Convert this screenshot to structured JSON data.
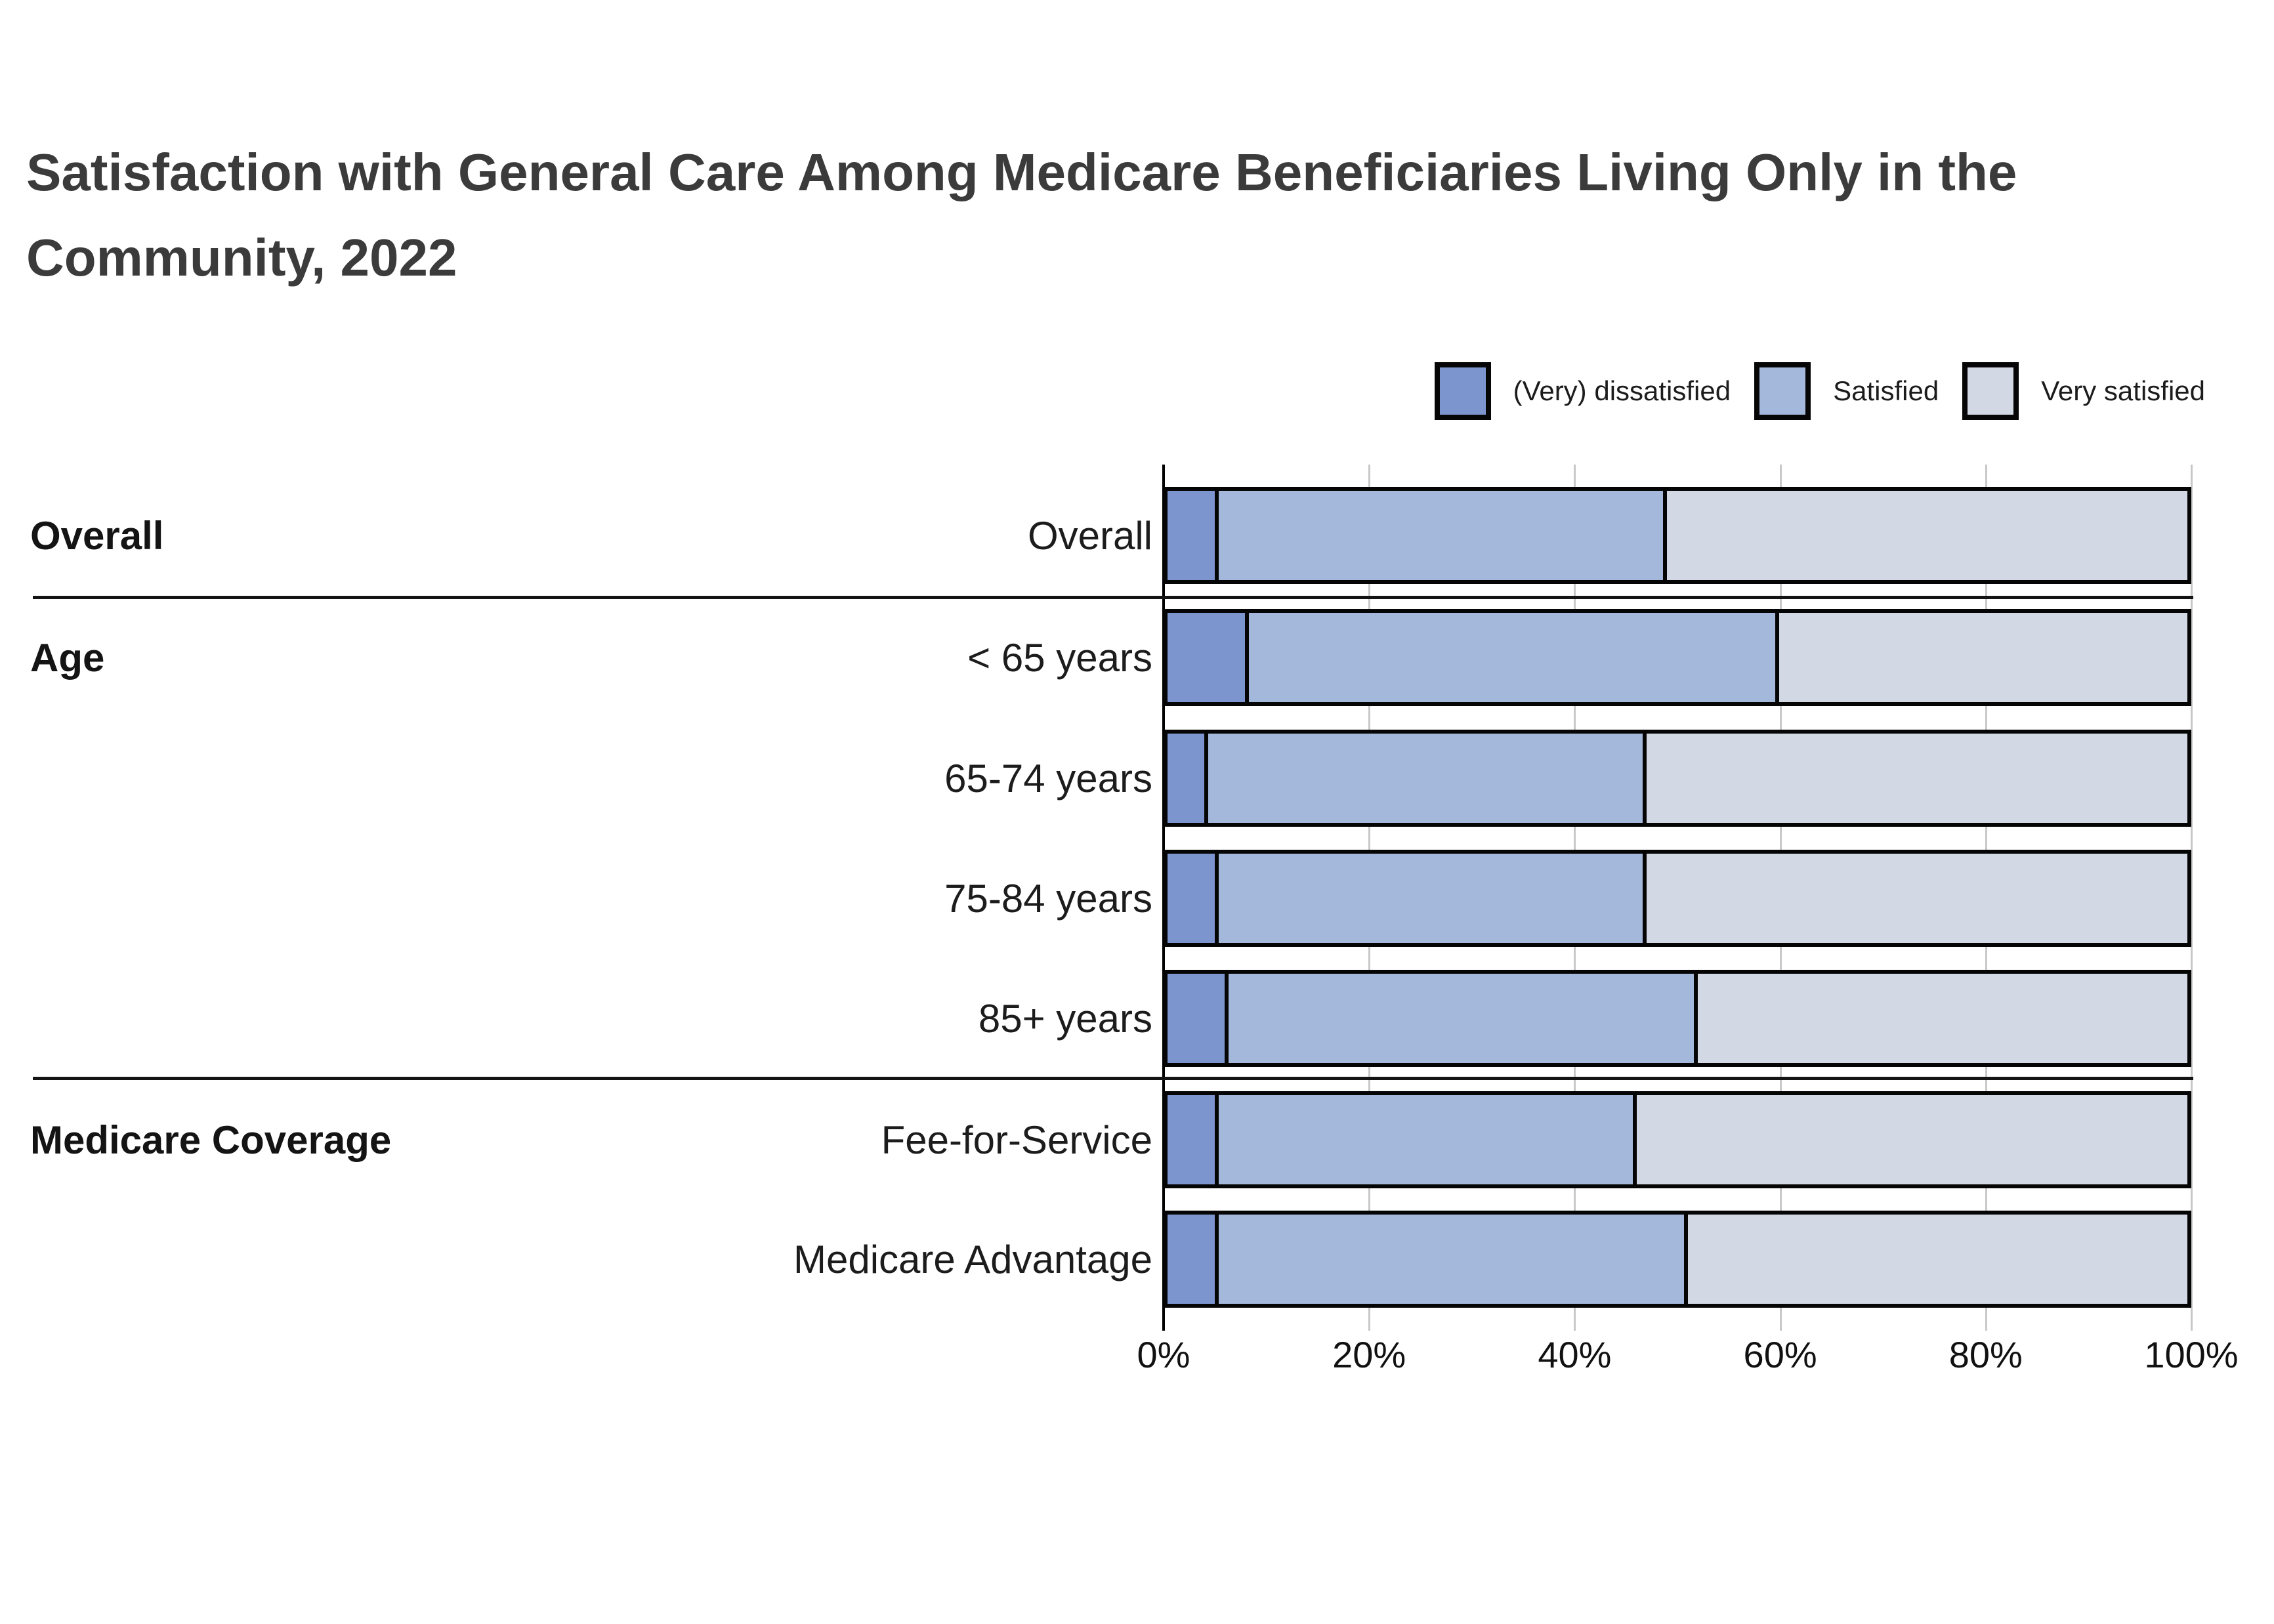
{
  "title": {
    "line1": "Satisfaction with General Care Among Medicare Beneficiaries Living Only in the",
    "line2": "Community, 2022"
  },
  "legend": [
    {
      "label": "(Very) dissatisfied",
      "color": "#7d95cf"
    },
    {
      "label": "Satisfied",
      "color": "#a4b8dc"
    },
    {
      "label": "Very satisfied",
      "color": "#d3d9e4"
    }
  ],
  "chart_data": {
    "type": "bar",
    "orientation": "horizontal-stacked",
    "unit": "percent",
    "series_names": [
      "(Very) dissatisfied",
      "Satisfied",
      "Very satisfied"
    ],
    "series_colors": [
      "#7d95cf",
      "#a4b8dc",
      "#d3d9e4"
    ],
    "x_axis": {
      "min": 0,
      "max": 100,
      "ticks": [
        "0%",
        "20%",
        "40%",
        "60%",
        "80%",
        "100%"
      ],
      "grid": true
    },
    "groups": [
      {
        "label": "Overall",
        "rows": [
          {
            "label": "Overall",
            "values": [
              5,
              44,
              51
            ]
          }
        ]
      },
      {
        "label": "Age",
        "rows": [
          {
            "label": "< 65 years",
            "values": [
              8,
              52,
              40
            ]
          },
          {
            "label": "65-74 years",
            "values": [
              4,
              43,
              53
            ]
          },
          {
            "label": "75-84 years",
            "values": [
              5,
              42,
              53
            ]
          },
          {
            "label": "85+ years",
            "values": [
              6,
              46,
              48
            ]
          }
        ]
      },
      {
        "label": "Medicare Coverage",
        "rows": [
          {
            "label": "Fee-for-Service",
            "values": [
              5,
              41,
              54
            ]
          },
          {
            "label": "Medicare Advantage",
            "values": [
              5,
              46,
              49
            ]
          }
        ]
      }
    ]
  },
  "colors": {
    "title": "#3b3b3b",
    "bar_border": "#050505",
    "gridline": "#c8c8c8",
    "axis": "#000000",
    "separator": "#141414",
    "text": "#1c1c1c",
    "background": "#ffffff"
  }
}
